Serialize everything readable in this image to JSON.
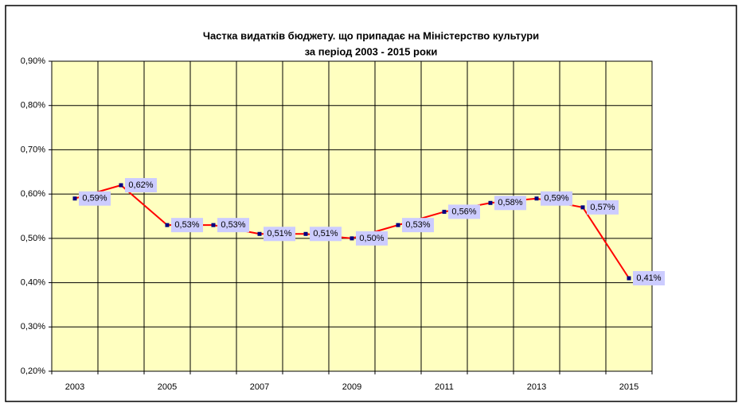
{
  "chart_data": {
    "type": "line",
    "title": "Частка видатків бюджету. що припадає на Міністерство культури",
    "subtitle": "за період 2003 - 2015 роки",
    "categories": [
      "2003",
      null,
      "2005",
      null,
      "2007",
      null,
      "2009",
      null,
      "2011",
      null,
      "2013",
      null,
      "2015"
    ],
    "series": [
      {
        "name": "Частка видатків",
        "color": "#ff0000",
        "marker_color": "#000080",
        "values": [
          0.59,
          0.62,
          0.53,
          0.53,
          0.51,
          0.51,
          0.5,
          0.53,
          0.56,
          0.58,
          0.59,
          0.57,
          0.41
        ],
        "value_labels": [
          "0,59%",
          "0,62%",
          "0,53%",
          "0,53%",
          "0,51%",
          "0,51%",
          "0,50%",
          "0,53%",
          "0,56%",
          "0,58%",
          "0,59%",
          "0,57%",
          "0,41%"
        ]
      }
    ],
    "ylim": [
      0.2,
      0.9
    ],
    "yticks": [
      {
        "value": 0.2,
        "label": "0,20%"
      },
      {
        "value": 0.3,
        "label": "0,30%"
      },
      {
        "value": 0.4,
        "label": "0,40%"
      },
      {
        "value": 0.5,
        "label": "0,50%"
      },
      {
        "value": 0.6,
        "label": "0,60%"
      },
      {
        "value": 0.7,
        "label": "0,70%"
      },
      {
        "value": 0.8,
        "label": "0,80%"
      },
      {
        "value": 0.9,
        "label": "0,90%"
      }
    ],
    "grid": true,
    "plot_background": "#ffffc0",
    "label_background": "#ccccff"
  }
}
